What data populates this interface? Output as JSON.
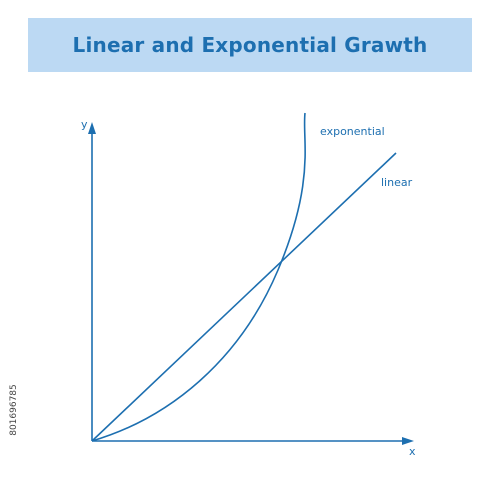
{
  "title": "Linear and Exponential Grawth",
  "axes": {
    "x_label": "x",
    "y_label": "y"
  },
  "curves": {
    "exponential_label": "exponential",
    "linear_label": "linear"
  },
  "side_id": "801696785",
  "colors": {
    "accent": "#1d6fb0",
    "banner": "#bcd9f3",
    "background": "#ffffff"
  }
}
